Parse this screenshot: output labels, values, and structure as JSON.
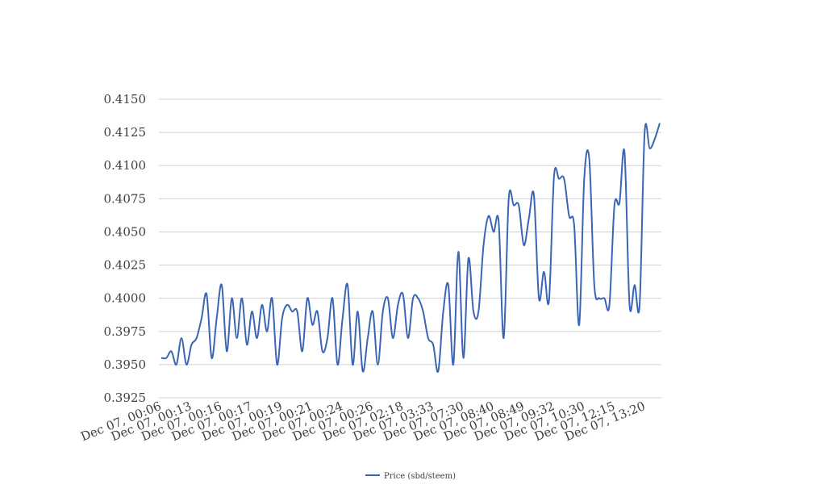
{
  "chart_data": {
    "type": "line",
    "title": "",
    "xlabel": "",
    "ylabel": "",
    "ylim": [
      0.3925,
      0.415
    ],
    "yticks": [
      "0.3925",
      "0.3950",
      "0.3975",
      "0.4000",
      "0.4025",
      "0.4050",
      "0.4075",
      "0.4100",
      "0.4125",
      "0.4150"
    ],
    "y_tick_values": [
      0.3925,
      0.395,
      0.3975,
      0.4,
      0.4025,
      0.405,
      0.4075,
      0.41,
      0.4125,
      0.415
    ],
    "grid": true,
    "legend_position": "bottom",
    "x_tick_labels": [
      "Dec 07, 00:06",
      "Dec 07, 00:13",
      "Dec 07, 00:16",
      "Dec 07, 00:17",
      "Dec 07, 00:19",
      "Dec 07, 00:21",
      "Dec 07, 00:24",
      "Dec 07, 00:26",
      "Dec 07, 02:18",
      "Dec 07, 03:33",
      "Dec 07, 07:30",
      "Dec 07, 08:40",
      "Dec 07, 08:49",
      "Dec 07, 09:32",
      "Dec 07, 10:30",
      "Dec 07, 12:15",
      "Dec 07, 13:20"
    ],
    "series": [
      {
        "name": "Price (sbd/steem)",
        "color": "#3a65b5",
        "values": [
          0.3955,
          0.3955,
          0.396,
          0.395,
          0.397,
          0.395,
          0.3965,
          0.397,
          0.3985,
          0.4003,
          0.3955,
          0.3985,
          0.401,
          0.396,
          0.4,
          0.397,
          0.4,
          0.3965,
          0.399,
          0.397,
          0.3995,
          0.3975,
          0.4,
          0.395,
          0.3985,
          0.3995,
          0.399,
          0.399,
          0.396,
          0.4,
          0.398,
          0.399,
          0.396,
          0.397,
          0.4,
          0.395,
          0.3985,
          0.401,
          0.395,
          0.399,
          0.3945,
          0.397,
          0.399,
          0.395,
          0.399,
          0.4,
          0.397,
          0.3995,
          0.4003,
          0.397,
          0.4,
          0.4,
          0.399,
          0.397,
          0.3965,
          0.3945,
          0.399,
          0.401,
          0.395,
          0.4035,
          0.3955,
          0.403,
          0.399,
          0.399,
          0.404,
          0.4062,
          0.405,
          0.4058,
          0.397,
          0.4075,
          0.407,
          0.407,
          0.404,
          0.406,
          0.4078,
          0.4,
          0.402,
          0.3998,
          0.4092,
          0.409,
          0.409,
          0.4062,
          0.4055,
          0.398,
          0.409,
          0.4105,
          0.401,
          0.4,
          0.4,
          0.3995,
          0.407,
          0.4072,
          0.411,
          0.3995,
          0.401,
          0.3995,
          0.4125,
          0.4113,
          0.412,
          0.4132
        ]
      }
    ]
  }
}
